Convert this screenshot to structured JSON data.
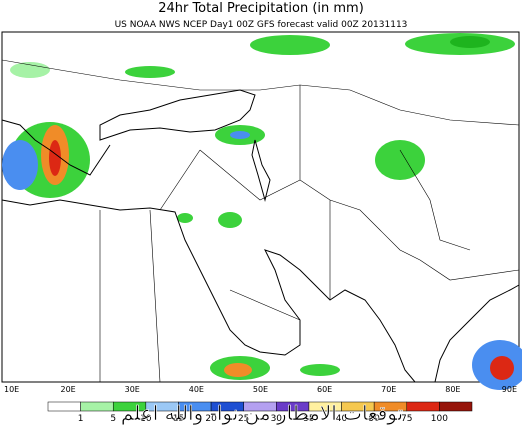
{
  "header": {
    "title": "24hr Total Precipitation (in mm)",
    "subtitle": "US NOAA NWS NCEP Day1 00Z GFS forecast valid 00Z 20131113"
  },
  "map": {
    "longitude_labels": [
      "10E",
      "20E",
      "30E",
      "40E",
      "50E",
      "60E",
      "70E",
      "80E",
      "90E"
    ]
  },
  "legend": {
    "colors": [
      "#ffffff",
      "#a6f2a6",
      "#3cd23c",
      "#9bc8f5",
      "#4a8ef0",
      "#1e4fd2",
      "#b4a0f0",
      "#6a3cc8",
      "#fff0a0",
      "#f5c850",
      "#f08c28",
      "#dc2814",
      "#96140a"
    ],
    "labels": [
      1,
      5,
      10,
      15,
      20,
      25,
      30,
      35,
      40,
      50,
      75,
      100
    ]
  },
  "overlay_text": "توقعات الامطار من نوا- والله اعلم"
}
